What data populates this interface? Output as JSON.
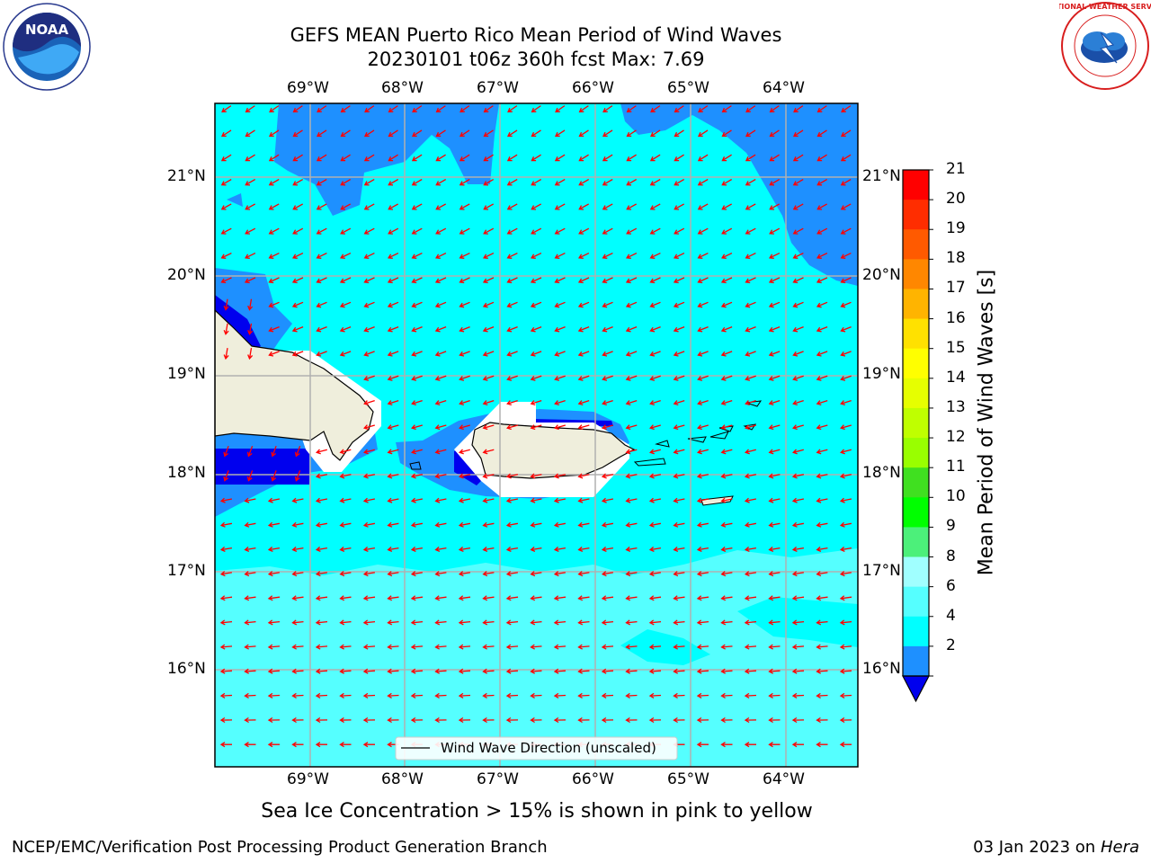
{
  "title": {
    "line1": "GEFS MEAN Puerto Rico Mean Period of Wind Waves",
    "line2": "20230101 t06z 360h fcst   Max: 7.69"
  },
  "map": {
    "lon_ticks": [
      "69°W",
      "68°W",
      "67°W",
      "66°W",
      "65°W",
      "64°W"
    ],
    "lat_ticks": [
      "21°N",
      "20°N",
      "19°N",
      "18°N",
      "17°N",
      "16°N"
    ],
    "legend_label": "Wind Wave Direction (unscaled)",
    "colors": {
      "ocean_main": "#00ffff",
      "ocean_light": "#55ffff",
      "ocean_band": "#1e90ff",
      "ocean_deep": "#0000ee",
      "land": "#efeedc",
      "arrow": "#ff0000"
    }
  },
  "colorbar": {
    "title": "Mean Period of Wind Waves [s]",
    "tick_labels": [
      "21",
      "20",
      "19",
      "18",
      "17",
      "16",
      "15",
      "14",
      "13",
      "12",
      "11",
      "10",
      "9",
      "8",
      "6",
      "4",
      "2"
    ],
    "colors": [
      "#ff0000",
      "#ff2d00",
      "#ff5a00",
      "#ff8700",
      "#ffb400",
      "#ffe100",
      "#ffff00",
      "#e6ff00",
      "#bfff00",
      "#99ff00",
      "#40e020",
      "#00ff00",
      "#4cf07a",
      "#a0ffff",
      "#55ffff",
      "#00ffff",
      "#1e90ff"
    ],
    "extend_color": "#0000ee"
  },
  "note": "Sea Ice Concentration > 15% is shown in pink to yellow",
  "footer": {
    "left": "NCEP/EMC/Verification Post Processing Product Generation Branch",
    "date": "03 Jan 2023 on ",
    "machine": "Hera"
  },
  "logos": {
    "noaa_text": "NOAA",
    "nws_text": "NATIONAL WEATHER SERVICE"
  }
}
